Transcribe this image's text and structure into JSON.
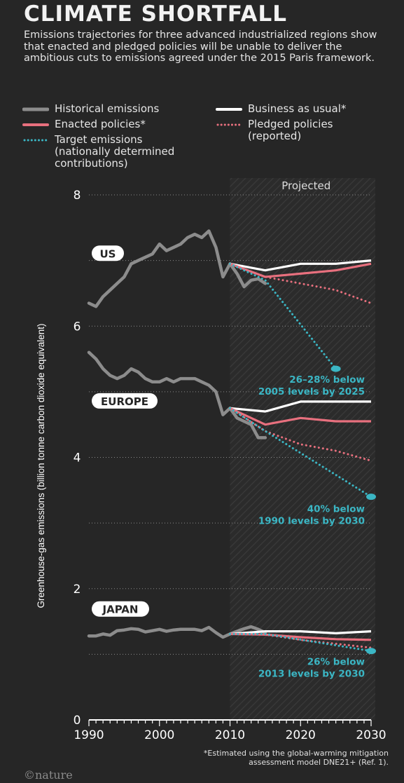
{
  "header": {
    "title": "CLIMATE SHORTFALL",
    "subtitle": "Emissions trajectories for three advanced industrialized regions show that enacted and pledged policies will be unable to deliver the ambitious cuts to emissions agreed under the 2015 Paris framework."
  },
  "legend": [
    {
      "label": "Historical emissions",
      "color": "#8c8c8c",
      "style": "solid"
    },
    {
      "label": "Business as usual*",
      "color": "#ffffff",
      "style": "solid"
    },
    {
      "label": "Enacted policies*",
      "color": "#e8707e",
      "style": "solid"
    },
    {
      "label": "Pledged policies\n(reported)",
      "color": "#e8707e",
      "style": "dotted"
    },
    {
      "label": "Target emissions\n(nationally determined\ncontributions)",
      "color": "#3bb6c4",
      "style": "dotted"
    }
  ],
  "colors": {
    "background": "#262626",
    "historical": "#8c8c8c",
    "bau": "#ffffff",
    "enacted": "#e8707e",
    "pledged": "#e8707e",
    "target": "#3bb6c4"
  },
  "chart_data": {
    "type": "line",
    "ylabel": "Greenhouse-gas emissions (billion tonne carbon dioxide equivalent)",
    "xlim": [
      1990,
      2030
    ],
    "ylim": [
      0,
      8
    ],
    "x_ticks": [
      1990,
      2000,
      2010,
      2020,
      2030
    ],
    "y_ticks": [
      0,
      2,
      4,
      6,
      8
    ],
    "grid": "dotted horizontal every 1",
    "projected_label": "Projected",
    "projected_start": 2010,
    "footnote": "*Estimated using the global-warming mitigation\nassessment model DNE21+ (Ref. 1).",
    "regions": [
      {
        "name": "US",
        "label_year": 1990,
        "label_value": 7.1,
        "historical": {
          "x": [
            1990,
            1991,
            1992,
            1993,
            1994,
            1995,
            1996,
            1997,
            1998,
            1999,
            2000,
            2001,
            2002,
            2003,
            2004,
            2005,
            2006,
            2007,
            2008,
            2009,
            2010,
            2011,
            2012,
            2013,
            2014,
            2015
          ],
          "y": [
            6.35,
            6.3,
            6.45,
            6.55,
            6.65,
            6.75,
            6.95,
            7.0,
            7.05,
            7.1,
            7.25,
            7.15,
            7.2,
            7.25,
            7.35,
            7.4,
            7.35,
            7.45,
            7.2,
            6.75,
            6.95,
            6.8,
            6.6,
            6.7,
            6.72,
            6.65
          ]
        },
        "bau": {
          "x": [
            2010,
            2015,
            2020,
            2025,
            2030
          ],
          "y": [
            6.95,
            6.85,
            6.95,
            6.95,
            7.0
          ]
        },
        "enacted": {
          "x": [
            2010,
            2015,
            2020,
            2025,
            2030
          ],
          "y": [
            6.95,
            6.75,
            6.8,
            6.85,
            6.95
          ]
        },
        "pledged": {
          "x": [
            2010,
            2015,
            2020,
            2025,
            2030
          ],
          "y": [
            6.95,
            6.75,
            6.65,
            6.55,
            6.35
          ]
        },
        "target": {
          "x": [
            2010,
            2015,
            2025
          ],
          "y": [
            6.95,
            6.7,
            5.35
          ]
        },
        "target_label": "26–28% below\n2005 levels by 2025"
      },
      {
        "name": "EUROPE",
        "label_year": 1990,
        "label_value": 4.85,
        "historical": {
          "x": [
            1990,
            1991,
            1992,
            1993,
            1994,
            1995,
            1996,
            1997,
            1998,
            1999,
            2000,
            2001,
            2002,
            2003,
            2004,
            2005,
            2006,
            2007,
            2008,
            2009,
            2010,
            2011,
            2012,
            2013,
            2014,
            2015
          ],
          "y": [
            5.6,
            5.5,
            5.35,
            5.25,
            5.2,
            5.25,
            5.35,
            5.3,
            5.2,
            5.15,
            5.15,
            5.2,
            5.15,
            5.2,
            5.2,
            5.2,
            5.15,
            5.1,
            5.0,
            4.65,
            4.75,
            4.6,
            4.55,
            4.5,
            4.3,
            4.3
          ]
        },
        "bau": {
          "x": [
            2010,
            2015,
            2020,
            2025,
            2030
          ],
          "y": [
            4.75,
            4.7,
            4.85,
            4.85,
            4.85
          ]
        },
        "enacted": {
          "x": [
            2010,
            2015,
            2020,
            2025,
            2030
          ],
          "y": [
            4.75,
            4.5,
            4.6,
            4.55,
            4.55
          ]
        },
        "pledged": {
          "x": [
            2010,
            2015,
            2020,
            2025,
            2030
          ],
          "y": [
            4.75,
            4.4,
            4.2,
            4.1,
            3.95
          ]
        },
        "target": {
          "x": [
            2010,
            2015,
            2030
          ],
          "y": [
            4.75,
            4.4,
            3.4
          ]
        },
        "target_label": "40% below\n1990 levels by 2030"
      },
      {
        "name": "JAPAN",
        "label_year": 1990,
        "label_value": 1.68,
        "historical": {
          "x": [
            1990,
            1991,
            1992,
            1993,
            1994,
            1995,
            1996,
            1997,
            1998,
            1999,
            2000,
            2001,
            2002,
            2003,
            2004,
            2005,
            2006,
            2007,
            2008,
            2009,
            2010,
            2011,
            2012,
            2013,
            2014,
            2015
          ],
          "y": [
            1.28,
            1.28,
            1.31,
            1.29,
            1.36,
            1.37,
            1.39,
            1.38,
            1.34,
            1.36,
            1.38,
            1.35,
            1.37,
            1.38,
            1.38,
            1.38,
            1.36,
            1.41,
            1.33,
            1.26,
            1.31,
            1.35,
            1.39,
            1.42,
            1.38,
            1.33
          ]
        },
        "bau": {
          "x": [
            2010,
            2015,
            2020,
            2025,
            2030
          ],
          "y": [
            1.31,
            1.35,
            1.35,
            1.32,
            1.35
          ]
        },
        "enacted": {
          "x": [
            2010,
            2015,
            2020,
            2025,
            2030
          ],
          "y": [
            1.31,
            1.3,
            1.26,
            1.23,
            1.22
          ]
        },
        "pledged": {
          "x": [
            2010,
            2015,
            2020,
            2025,
            2030
          ],
          "y": [
            1.31,
            1.3,
            1.22,
            1.16,
            1.1
          ]
        },
        "target": {
          "x": [
            2010,
            2015,
            2030
          ],
          "y": [
            1.31,
            1.31,
            1.05
          ]
        },
        "target_label": "26% below\n2013 levels by 2030"
      }
    ]
  },
  "credit": "©nature"
}
